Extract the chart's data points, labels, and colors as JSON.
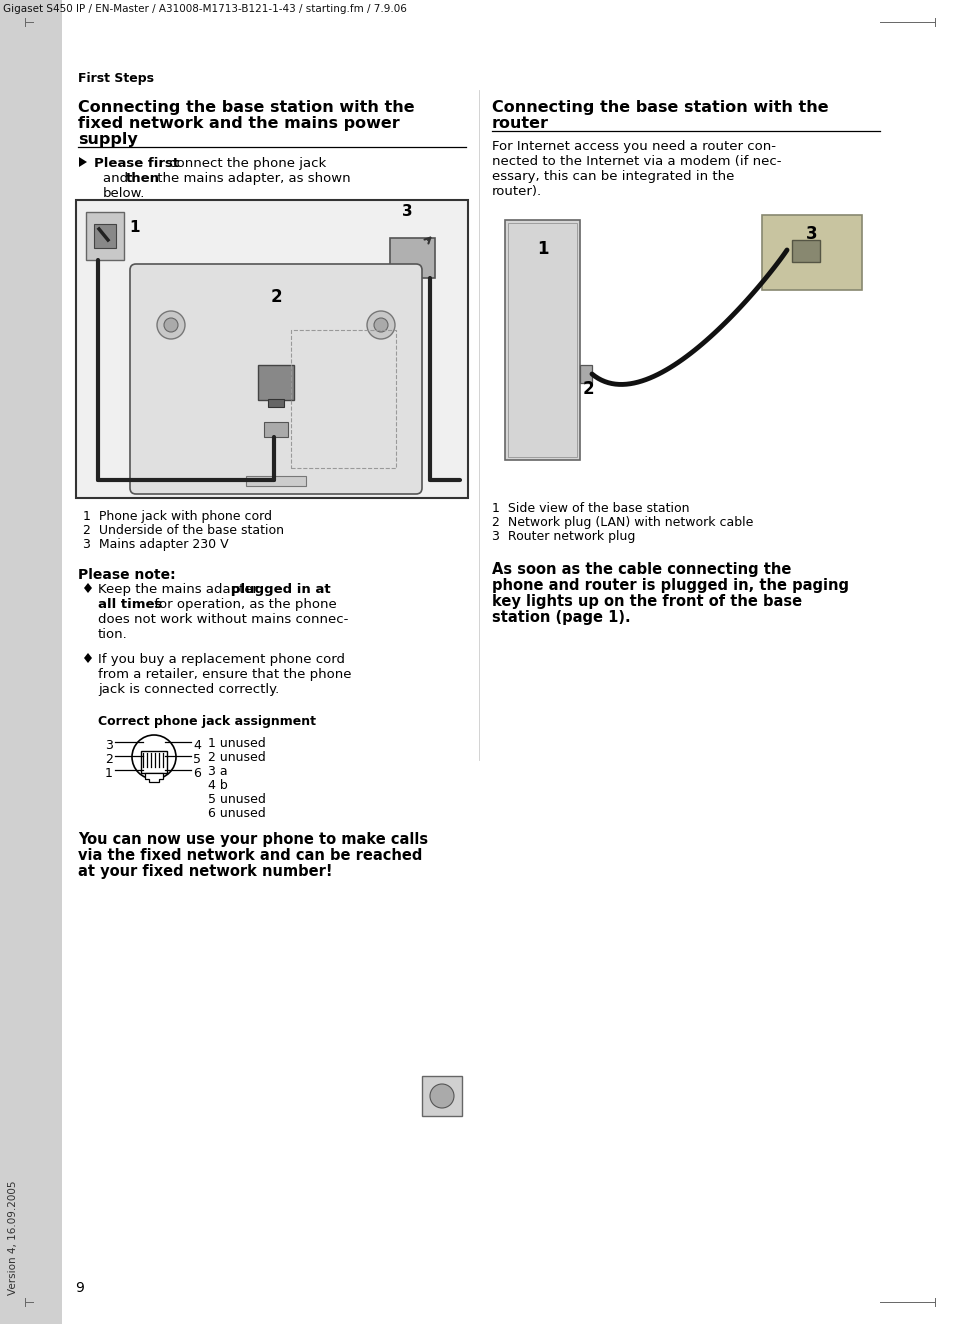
{
  "header_text": "Gigaset S450 IP / EN-Master / A31008-M1713-B121-1-43 / starting.fm / 7.9.06",
  "version_text": "Version 4, 16.09.2005",
  "page_number": "9",
  "section_label": "First Steps",
  "left_title_line1": "Connecting the base station with the",
  "left_title_line2": "fixed network and the mains power",
  "left_title_line3": "supply",
  "right_title_line1": "Connecting the base station with the",
  "right_title_line2": "router",
  "image1_caption_lines": [
    "1  Phone jack with phone cord",
    "2  Underside of the base station",
    "3  Mains adapter 230 V"
  ],
  "please_note_title": "Please note:",
  "jack_title": "Correct phone jack assignment",
  "jack_legend_lines": [
    "1 unused",
    "2 unused",
    "3 a",
    "4 b",
    "5 unused",
    "6 unused"
  ],
  "closing_bold_lines": [
    "You can now use your phone to make calls",
    "via the fixed network and can be reached",
    "at your fixed network number!"
  ],
  "right_intro_lines": [
    "For Internet access you need a router con-",
    "nected to the Internet via a modem (if nec-",
    "essary, this can be integrated in the",
    "router)."
  ],
  "image2_caption_lines": [
    "1  Side view of the base station",
    "2  Network plug (LAN) with network cable",
    "3  Router network plug"
  ],
  "right_closing_bold_lines": [
    "As soon as the cable connecting the",
    "phone and router is plugged in, the paging",
    "key lights up on the front of the base",
    "station (page 1)."
  ],
  "bg_color": "#ffffff",
  "sidebar_color": "#d0d0d0",
  "text_color": "#000000",
  "title_fontsize": 11.5,
  "body_fontsize": 9.5,
  "caption_fontsize": 9,
  "note_title_fontsize": 10,
  "closing_fontsize": 10.5
}
